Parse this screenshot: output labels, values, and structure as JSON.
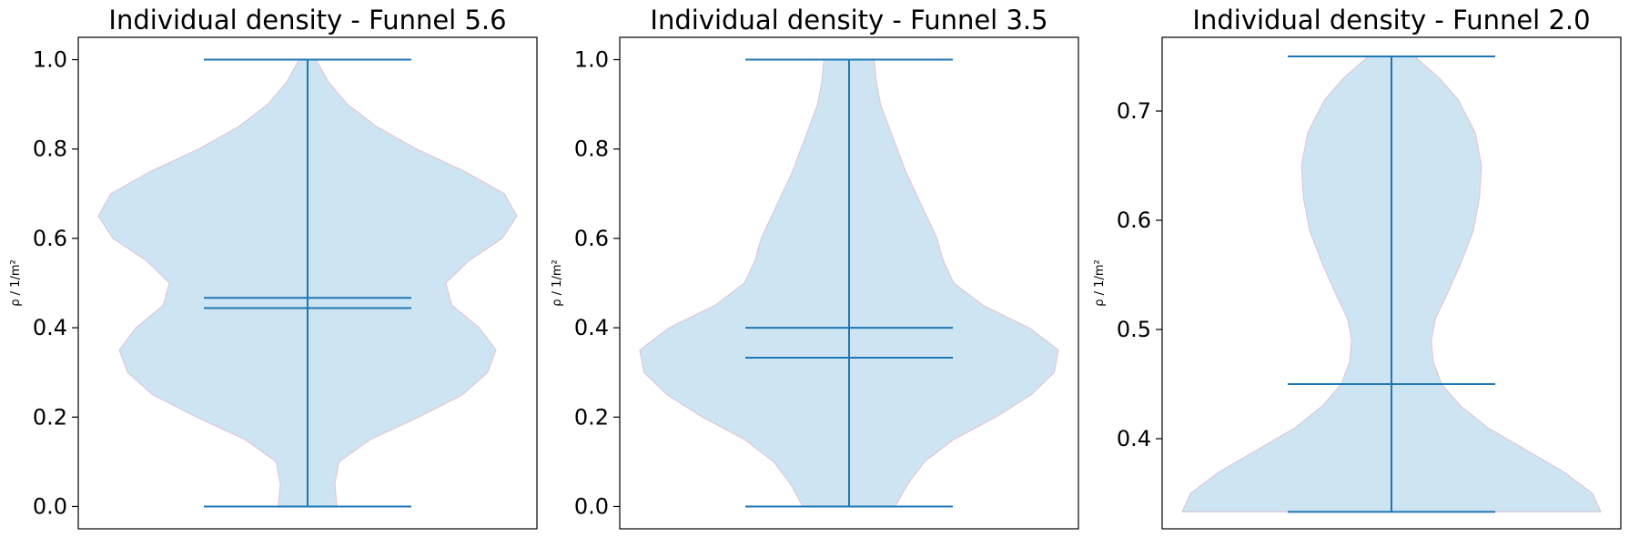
{
  "chart_data": [
    {
      "type": "violin",
      "title": "Individual density - Funnel 5.6",
      "ylabel": "ρ / 1/m²",
      "ylim": [
        -0.05,
        1.05
      ],
      "yticks": [
        0.0,
        0.2,
        0.4,
        0.6,
        0.8,
        1.0
      ],
      "ytick_labels": [
        "0.0",
        "0.2",
        "0.4",
        "0.6",
        "0.8",
        "1.0"
      ],
      "stats": {
        "min": 0.0,
        "max": 1.0,
        "mean": 0.467,
        "median": 0.444
      },
      "density": [
        [
          0.0,
          0.14
        ],
        [
          0.05,
          0.13
        ],
        [
          0.1,
          0.15
        ],
        [
          0.15,
          0.3
        ],
        [
          0.2,
          0.53
        ],
        [
          0.25,
          0.74
        ],
        [
          0.3,
          0.86
        ],
        [
          0.35,
          0.9
        ],
        [
          0.4,
          0.82
        ],
        [
          0.45,
          0.69
        ],
        [
          0.5,
          0.66
        ],
        [
          0.55,
          0.77
        ],
        [
          0.6,
          0.93
        ],
        [
          0.65,
          1.0
        ],
        [
          0.7,
          0.94
        ],
        [
          0.75,
          0.75
        ],
        [
          0.8,
          0.52
        ],
        [
          0.85,
          0.33
        ],
        [
          0.9,
          0.19
        ],
        [
          0.95,
          0.1
        ],
        [
          1.0,
          0.04
        ]
      ],
      "fill_color": "#cde4f2",
      "edge_color": "#e0c8d8",
      "line_color": "#1f77b4"
    },
    {
      "type": "violin",
      "title": "Individual density - Funnel 3.5",
      "ylabel": "ρ / 1/m²",
      "ylim": [
        -0.05,
        1.05
      ],
      "yticks": [
        0.0,
        0.2,
        0.4,
        0.6,
        0.8,
        1.0
      ],
      "ytick_labels": [
        "0.0",
        "0.2",
        "0.4",
        "0.6",
        "0.8",
        "1.0"
      ],
      "stats": {
        "min": 0.0,
        "max": 1.0,
        "mean": 0.4,
        "median": 0.333
      },
      "density": [
        [
          0.0,
          0.22
        ],
        [
          0.05,
          0.28
        ],
        [
          0.1,
          0.36
        ],
        [
          0.15,
          0.5
        ],
        [
          0.2,
          0.7
        ],
        [
          0.25,
          0.87
        ],
        [
          0.3,
          0.98
        ],
        [
          0.35,
          1.0
        ],
        [
          0.4,
          0.86
        ],
        [
          0.45,
          0.64
        ],
        [
          0.5,
          0.5
        ],
        [
          0.55,
          0.45
        ],
        [
          0.6,
          0.42
        ],
        [
          0.65,
          0.37
        ],
        [
          0.7,
          0.32
        ],
        [
          0.75,
          0.27
        ],
        [
          0.8,
          0.23
        ],
        [
          0.85,
          0.19
        ],
        [
          0.9,
          0.15
        ],
        [
          0.95,
          0.13
        ],
        [
          1.0,
          0.12
        ]
      ],
      "fill_color": "#cde4f2",
      "edge_color": "#e0c8d8",
      "line_color": "#1f77b4"
    },
    {
      "type": "violin",
      "title": "Individual density - Funnel 2.0",
      "ylabel": "ρ / 1/m²",
      "ylim": [
        0.3175,
        0.7675
      ],
      "yticks": [
        0.4,
        0.5,
        0.6,
        0.7
      ],
      "ytick_labels": [
        "0.4",
        "0.5",
        "0.6",
        "0.7"
      ],
      "stats": {
        "min": 0.333,
        "max": 0.75,
        "mean": 0.45,
        "median": 0.45
      },
      "density": [
        [
          0.333,
          1.0
        ],
        [
          0.35,
          0.96
        ],
        [
          0.37,
          0.82
        ],
        [
          0.39,
          0.64
        ],
        [
          0.41,
          0.46
        ],
        [
          0.43,
          0.33
        ],
        [
          0.45,
          0.24
        ],
        [
          0.47,
          0.2
        ],
        [
          0.49,
          0.19
        ],
        [
          0.51,
          0.21
        ],
        [
          0.53,
          0.26
        ],
        [
          0.56,
          0.33
        ],
        [
          0.59,
          0.39
        ],
        [
          0.62,
          0.42
        ],
        [
          0.65,
          0.43
        ],
        [
          0.68,
          0.4
        ],
        [
          0.71,
          0.32
        ],
        [
          0.73,
          0.23
        ],
        [
          0.75,
          0.11
        ]
      ],
      "fill_color": "#cde4f2",
      "edge_color": "#e0c8d8",
      "line_color": "#1f77b4"
    }
  ]
}
